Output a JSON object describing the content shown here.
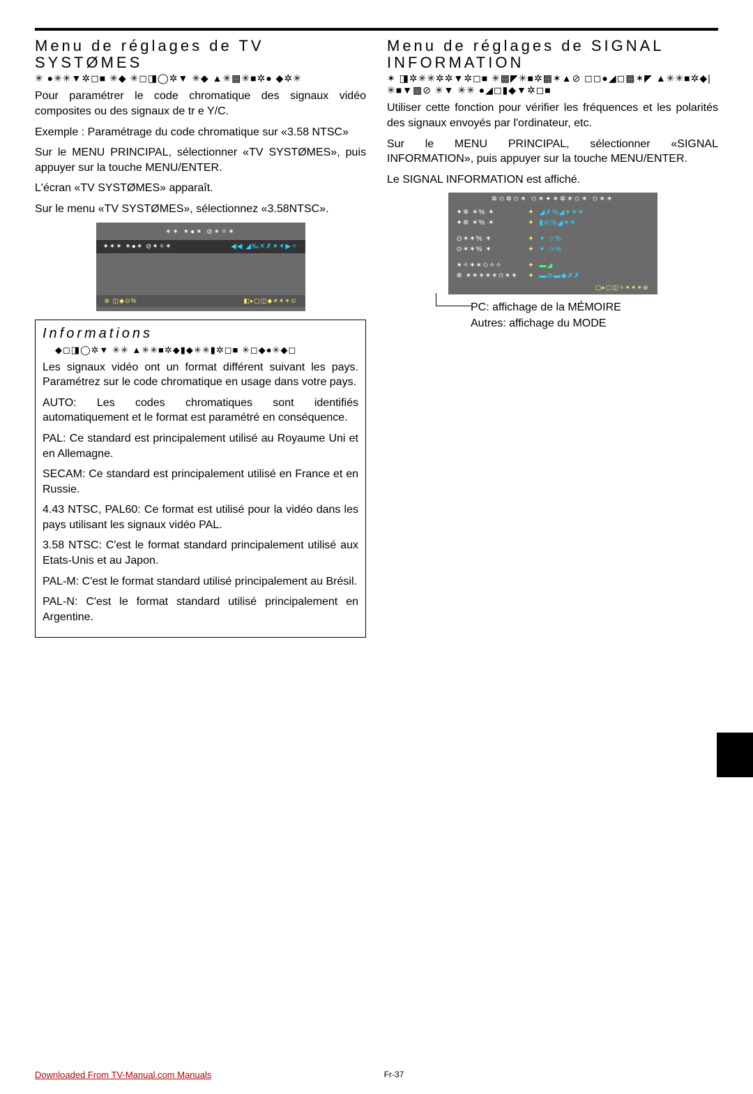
{
  "left": {
    "title": "Menu de réglages de TV SYSTØMES",
    "sym_subtitle": "✳ ●✳✳▼✲◻■ ✳◆ ✳◻◨◯✲▼ ✳◆ ▲✳▩✳■✲● ◆✲✳",
    "p1": "Pour paramétrer le code chromatique des signaux vidéo composites ou des signaux de tr e Y/C.",
    "p2": "Exemple : Paramétrage du code chromatique sur «3.58 NTSC»",
    "p3": "Sur le MENU PRINCIPAL, sélectionner «TV SYSTØMES», puis appuyer sur la touche MENU/ENTER.",
    "p4": "L'écran «TV SYSTØMES» apparaît.",
    "p5": "Sur le menu «TV SYSTØMES», sélectionnez «3.58NTSC».",
    "tvsys": {
      "header": "✶✶ ✶●✶ ⊘✶✧✶",
      "row_label": "✦✶✶ ✶●✶ ⊘✶✧✶",
      "row_value": "◀◀ ◢‰✕✗✶✶▶✧",
      "footer_left": "⊕ ◫◆⊙%",
      "footer_right": "◧▸▢◫◆✶✶✶⊙"
    },
    "info": {
      "title": "Informations",
      "sym": "◆◻◨◯✲▼ ✳✳ ▲✳✳■✲◆▮◆✳✳▮✲◻■ ✳◻◆●✳◆◻",
      "p1": "Les signaux vidéo ont un format différent suivant les pays. Paramétrez sur le code chromatique en usage dans votre pays.",
      "p2": "AUTO: Les codes chromatiques sont identifiés automatiquement et le format est paramétré en conséquence.",
      "p3": "PAL: Ce standard est principalement utilisé au Royaume Uni et en Allemagne.",
      "p4": "SECAM: Ce standard est principalement utilisé en France et en Russie.",
      "p5": "4.43 NTSC, PAL60: Ce format est utilisé pour la vidéo dans les pays utilisant les signaux vidéo PAL.",
      "p6": "3.58 NTSC: C'est le format standard principalement utilisé aux Etats-Unis et au Japon.",
      "p7": "PAL-M: C'est le format standard utilisé principalement au Brésil.",
      "p8": "PAL-N: C'est le format standard utilisé principalement en Argentine."
    }
  },
  "right": {
    "title": "Menu de réglages de SIGNAL INFORMATION",
    "sym_subtitle": "✶ ◨✲✳✳✲✲▼✲◻■ ✳▩◤✳■✲▩✶▲⊘ ◻◻●◢◻▩✶◤ ▲✳✳■✲◆|✳■▼▩⊘ ✳▼ ✳✳ ●◢◻▮◆▼✲◻■",
    "p1": "Utiliser cette fonction pour vérifier les fréquences et les polarités des signaux envoyés par l'ordinateur, etc.",
    "p2": "Sur le MENU PRINCIPAL, sélectionner «SIGNAL INFORMATION», puis appuyer sur la touche MENU/ENTER.",
    "p3": "Le SIGNAL INFORMATION est affiché.",
    "sig": {
      "header": "✲✩✲✩✶ ✩✶✦✶✲✶✩✶ ✩✶✶",
      "rows": [
        {
          "l": "✦✲ ✶% ✶",
          "c": "✦",
          "r": "◢✗%◢✶✶✶",
          "class": ""
        },
        {
          "l": "✦✲ ✶% ✶",
          "c": "✦",
          "r": "▮⊘%◢✶✶",
          "class": ""
        },
        {
          "l": " ",
          "c": " ",
          "r": " ",
          "class": "spacer"
        },
        {
          "l": "⊙✶✶% ✶",
          "c": "✦",
          "r": "✶ ✩%",
          "class": ""
        },
        {
          "l": "⊙✶✶% ✶",
          "c": "✦",
          "r": "✶ ✩%",
          "class": ""
        },
        {
          "l": " ",
          "c": " ",
          "r": " ",
          "class": "spacer"
        },
        {
          "l": "✶✧✶✶✩✧✧",
          "c": "✦",
          "r": "▬◢",
          "class": "ok"
        },
        {
          "l": "✲  ✶✶✶✶✶✩✶✶",
          "c": "✦",
          "r": "▬⊘▬◆✗✗",
          "class": ""
        }
      ],
      "footer": "▢▸▢◫✧✶✶✶⊕"
    },
    "callout1": "PC:     affichage de la MÉMOIRE",
    "callout2": "Autres: affichage du MODE"
  },
  "footer": {
    "download": "Downloaded From TV-Manual.com Manuals",
    "page": "Fr-37"
  }
}
